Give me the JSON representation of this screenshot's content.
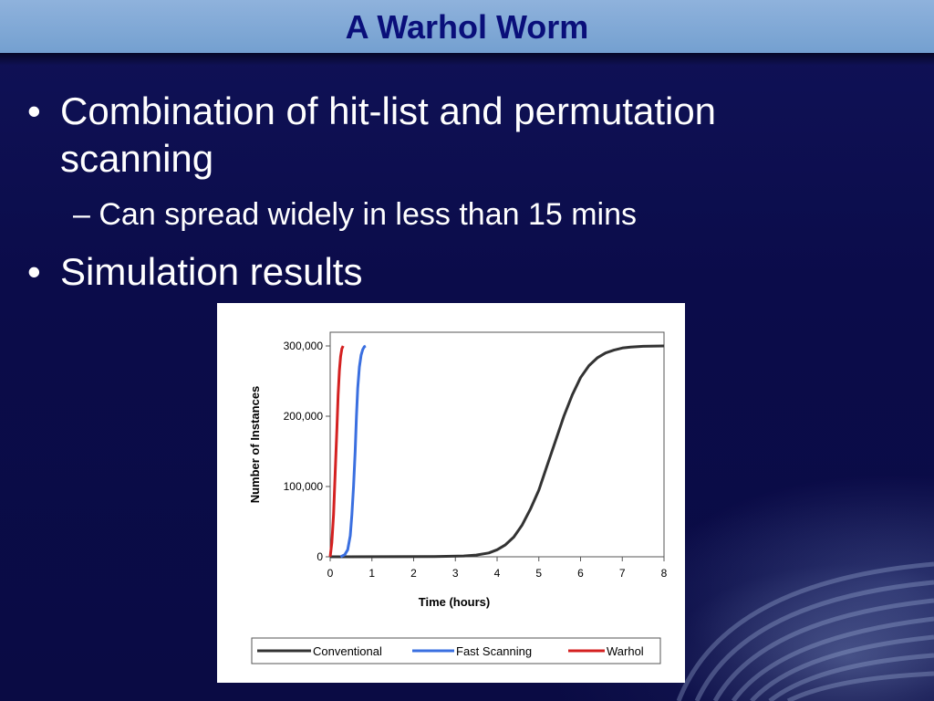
{
  "slide": {
    "title": "A Warhol Worm",
    "bullets": [
      {
        "bullet": "•",
        "text": "Combination of hit-list and permutation scanning",
        "sub": {
          "dash": "–",
          "text": "Can spread widely in less than 15 mins"
        }
      },
      {
        "bullet": "•",
        "text": "Simulation results"
      }
    ]
  },
  "chart_data": {
    "type": "line",
    "title": "",
    "xlabel": "Time (hours)",
    "ylabel": "Number of Instances",
    "xlim": [
      0,
      8
    ],
    "ylim": [
      0,
      300000
    ],
    "xticks": [
      "0",
      "1",
      "2",
      "3",
      "4",
      "5",
      "6",
      "7",
      "8"
    ],
    "yticks": [
      "0",
      "100,000",
      "200,000",
      "300,000"
    ],
    "grid": false,
    "legend": "bottom",
    "series": [
      {
        "name": "Conventional",
        "color": "#333333",
        "x": [
          0,
          2.5,
          3.2,
          3.5,
          3.8,
          4.0,
          4.2,
          4.4,
          4.6,
          4.8,
          5.0,
          5.2,
          5.4,
          5.6,
          5.8,
          6.0,
          6.2,
          6.4,
          6.6,
          6.8,
          7.0,
          7.2,
          7.5,
          8.0
        ],
        "y": [
          0,
          300,
          1200,
          2500,
          5500,
          10000,
          17000,
          28000,
          45000,
          68000,
          95000,
          130000,
          165000,
          200000,
          230000,
          255000,
          272000,
          283000,
          290000,
          294000,
          297000,
          298500,
          299500,
          300000
        ]
      },
      {
        "name": "Fast Scanning",
        "color": "#3a6fe0",
        "x": [
          0.25,
          0.35,
          0.42,
          0.48,
          0.52,
          0.56,
          0.6,
          0.63,
          0.66,
          0.7,
          0.74,
          0.78,
          0.82,
          0.85
        ],
        "y": [
          0,
          3000,
          10000,
          30000,
          60000,
          100000,
          150000,
          200000,
          240000,
          270000,
          287000,
          295000,
          299000,
          300000
        ]
      },
      {
        "name": "Warhol",
        "color": "#d42020",
        "x": [
          0.0,
          0.04,
          0.08,
          0.12,
          0.16,
          0.19,
          0.22,
          0.25,
          0.28,
          0.31
        ],
        "y": [
          0,
          20000,
          60000,
          120000,
          180000,
          230000,
          265000,
          285000,
          296000,
          300000
        ]
      }
    ]
  }
}
